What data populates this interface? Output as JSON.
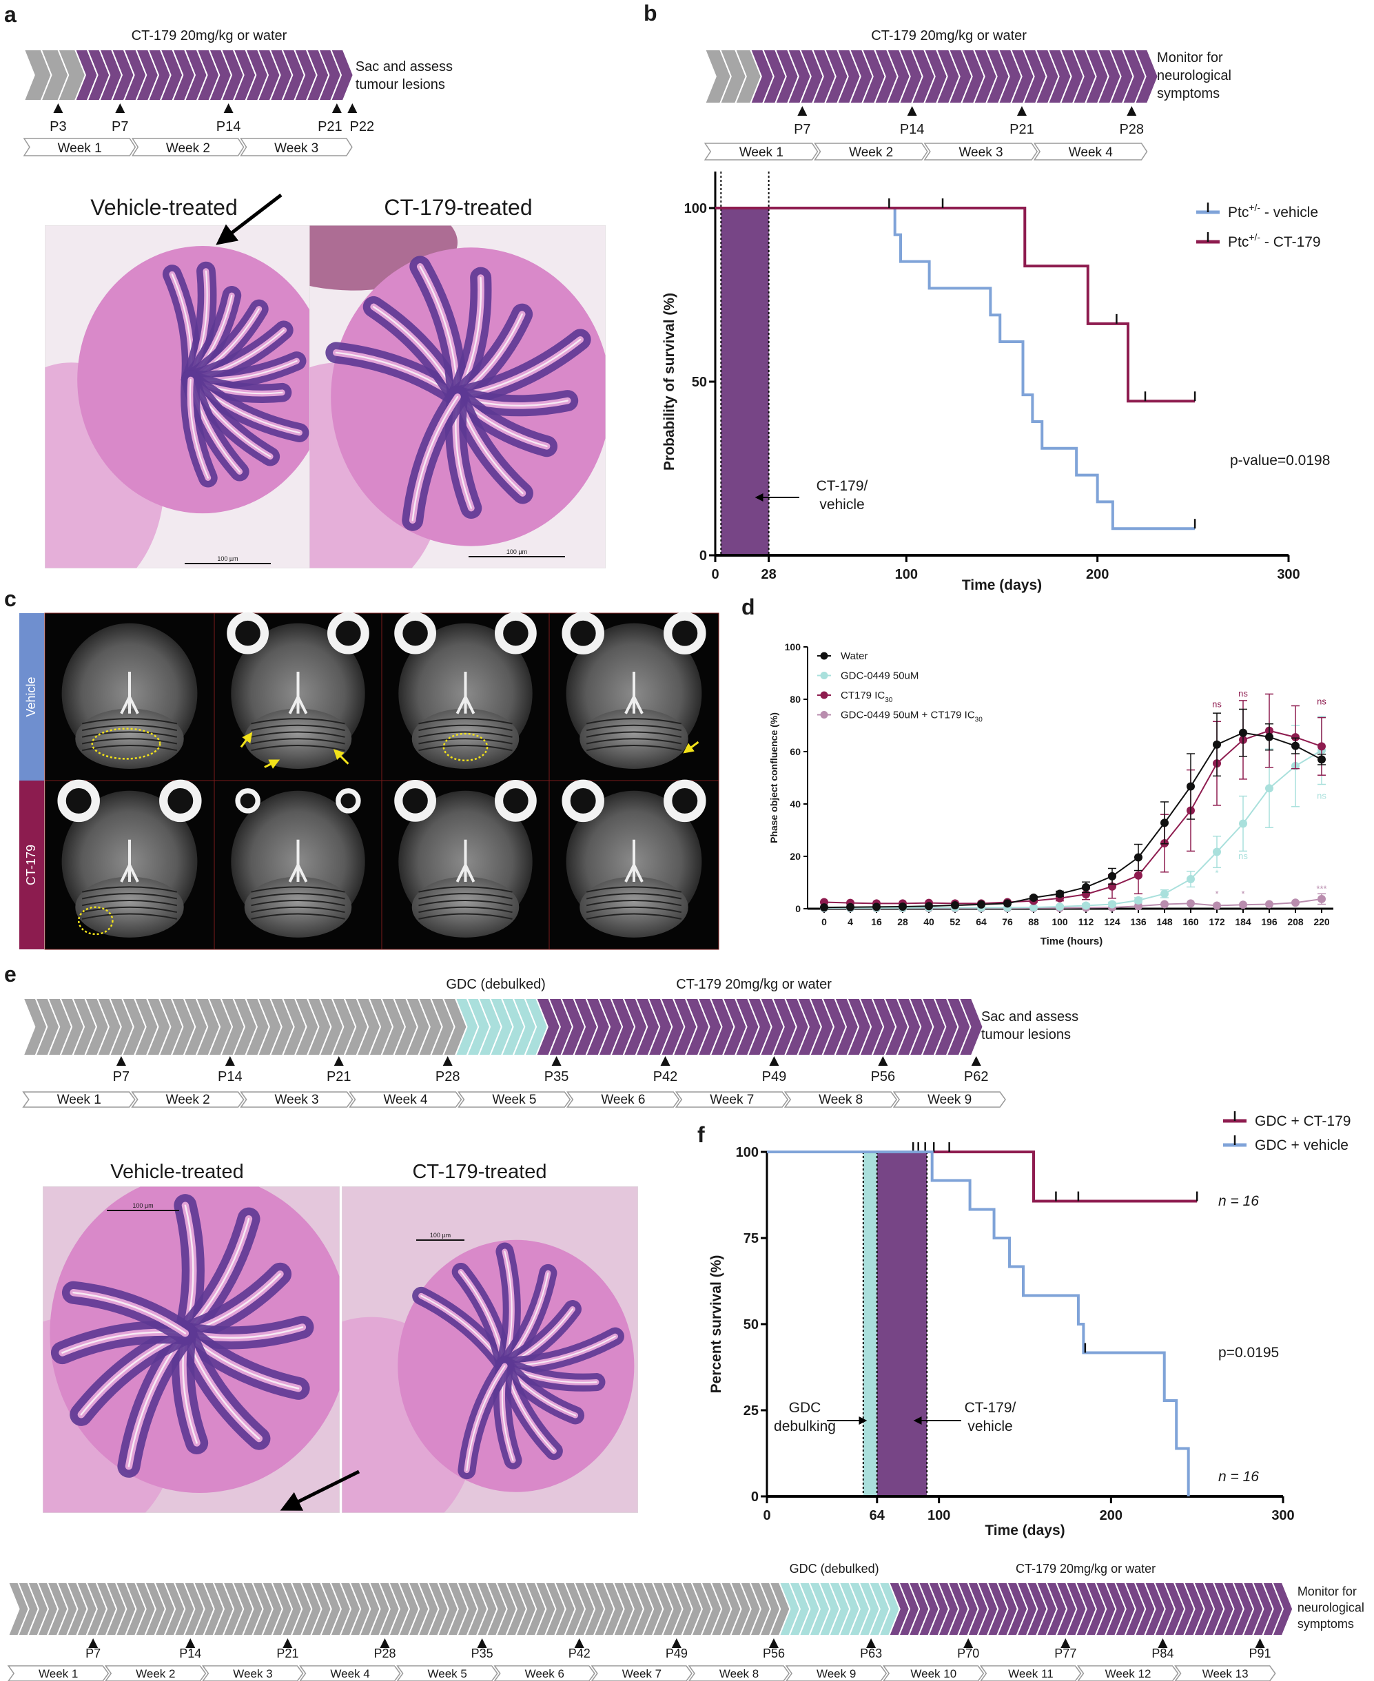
{
  "panel_labels": {
    "a": "a",
    "b": "b",
    "c": "c",
    "d": "d",
    "e": "e",
    "f": "f"
  },
  "colors": {
    "gray": "#a6a6a6",
    "purple": "#774586",
    "cyan": "#aadfdc",
    "blue": "#7fa3d8",
    "red": "#8e1c4f",
    "black": "#111111",
    "combo": "#b98dae",
    "d_cyan": "#a9e0dc",
    "vehicle_bar": "#6f8fcf",
    "ct179_bar": "#8c1c4f"
  },
  "timeline_a": {
    "phases": [
      {
        "color": "gray",
        "from": 0.8,
        "to": 4.1
      },
      {
        "color": "purple",
        "from": 4.1,
        "to": 21.4,
        "label": "CT-179 20mg/kg or water"
      }
    ],
    "end_label": [
      "Sac and assess",
      "tumour lesions"
    ],
    "markers": [
      {
        "label": "P3",
        "day": 3
      },
      {
        "label": "P7",
        "day": 7
      },
      {
        "label": "P14",
        "day": 14
      },
      {
        "label": "P21",
        "day": 21
      },
      {
        "label": "P22",
        "day": 22
      }
    ],
    "weeks": [
      "Week 1",
      "Week 2",
      "Week 3"
    ]
  },
  "timeline_b": {
    "phases": [
      {
        "color": "gray",
        "from": 0.8,
        "to": 3.7
      },
      {
        "color": "purple",
        "from": 3.7,
        "to": 29.0,
        "label": "CT-179 20mg/kg or water"
      }
    ],
    "end_label": [
      "Monitor for",
      "neurological",
      "symptoms"
    ],
    "markers": [
      {
        "label": "P7",
        "day": 7
      },
      {
        "label": "P14",
        "day": 14
      },
      {
        "label": "P21",
        "day": 21
      },
      {
        "label": "P28",
        "day": 28
      }
    ],
    "weeks": [
      "Week 1",
      "Week 2",
      "Week 3",
      "Week 4"
    ]
  },
  "histology_a": {
    "left_title": "Vehicle-treated",
    "right_title": "CT-179-treated",
    "scale_bar": "100 µm"
  },
  "mri_c": {
    "row_labels": [
      "Vehicle",
      "CT-179"
    ]
  },
  "timeline_e": {
    "phases": [
      {
        "color": "gray",
        "from": 0.7,
        "to": 28.5
      },
      {
        "color": "cyan",
        "from": 28.5,
        "to": 33.7,
        "label": "GDC (debulked)"
      },
      {
        "color": "purple",
        "from": 33.7,
        "to": 61.7,
        "label": "CT-179 20mg/kg or water"
      }
    ],
    "end_label": [
      "Sac and assess",
      "tumour lesions"
    ],
    "markers": [
      {
        "label": "P7",
        "day": 7
      },
      {
        "label": "P14",
        "day": 14
      },
      {
        "label": "P21",
        "day": 21
      },
      {
        "label": "P28",
        "day": 28
      },
      {
        "label": "P35",
        "day": 35
      },
      {
        "label": "P42",
        "day": 42
      },
      {
        "label": "P49",
        "day": 49
      },
      {
        "label": "P56",
        "day": 56
      },
      {
        "label": "P62",
        "day": 62
      }
    ],
    "weeks": [
      "Week 1",
      "Week 2",
      "Week 3",
      "Week 4",
      "Week 5",
      "Week 6",
      "Week 7",
      "Week 8",
      "Week 9"
    ]
  },
  "histology_e": {
    "left_title": "Vehicle-treated",
    "right_title": "CT-179-treated",
    "scale_bar": "100 µm"
  },
  "timeline_bottom": {
    "phases": [
      {
        "color": "gray",
        "from": 0.9,
        "to": 56.4
      },
      {
        "color": "cyan",
        "from": 56.4,
        "to": 64.3,
        "label": "GDC (debulked)"
      },
      {
        "color": "purple",
        "from": 64.3,
        "to": 92.6,
        "label": "CT-179 20mg/kg or water"
      }
    ],
    "end_label": [
      "Monitor for",
      "neurological",
      "symptoms"
    ],
    "markers": [
      {
        "label": "P7",
        "day": 7
      },
      {
        "label": "P14",
        "day": 14
      },
      {
        "label": "P21",
        "day": 21
      },
      {
        "label": "P28",
        "day": 28
      },
      {
        "label": "P35",
        "day": 35
      },
      {
        "label": "P42",
        "day": 42
      },
      {
        "label": "P49",
        "day": 49
      },
      {
        "label": "P56",
        "day": 56
      },
      {
        "label": "P63",
        "day": 63
      },
      {
        "label": "P70",
        "day": 70
      },
      {
        "label": "P77",
        "day": 77
      },
      {
        "label": "P84",
        "day": 84
      },
      {
        "label": "P91",
        "day": 91
      }
    ],
    "weeks": [
      "Week 1",
      "Week 2",
      "Week 3",
      "Week 4",
      "Week 5",
      "Week 6",
      "Week 7",
      "Week 8",
      "Week 9",
      "Week 10",
      "Week 11",
      "Week 12",
      "Week 13"
    ]
  },
  "chart_data": [
    {
      "id": "b",
      "type": "line",
      "subtype": "kaplan-meier",
      "xlabel": "Time (days)",
      "ylabel": "Probability of survival (%)",
      "xlim": [
        0,
        300
      ],
      "ylim": [
        0,
        100
      ],
      "xticks": [
        0,
        28,
        100,
        200,
        300
      ],
      "yticks": [
        0,
        50,
        100
      ],
      "shaded": [
        {
          "from": 3,
          "to": 28,
          "color": "purple",
          "label": [
            "CT-179/",
            "vehicle"
          ]
        }
      ],
      "series": [
        {
          "name": {
            "prefix": "Ptc",
            "sup": "+/-",
            "suffix": " - vehicle"
          },
          "color": "blue",
          "steps": [
            [
              0,
              100
            ],
            [
              94,
              92.3
            ],
            [
              97,
              84.6
            ],
            [
              112,
              76.9
            ],
            [
              144,
              69.2
            ],
            [
              149,
              61.5
            ],
            [
              161,
              46.2
            ],
            [
              166,
              38.5
            ],
            [
              171,
              30.8
            ],
            [
              189,
              23.1
            ],
            [
              200,
              15.4
            ],
            [
              208,
              7.7
            ],
            [
              251,
              7.7
            ]
          ],
          "censored": [
            [
              251,
              7.7
            ]
          ]
        },
        {
          "name": {
            "prefix": "Ptc",
            "sup": "+/-",
            "suffix": " - CT-179"
          },
          "color": "red",
          "steps": [
            [
              0,
              100
            ],
            [
              162,
              83.3
            ],
            [
              195,
              66.7
            ],
            [
              216,
              44.4
            ],
            [
              251,
              44.4
            ]
          ],
          "censored": [
            [
              91,
              100
            ],
            [
              119,
              100
            ],
            [
              210,
              66.7
            ],
            [
              225,
              44.4
            ],
            [
              251,
              44.4
            ]
          ]
        }
      ],
      "annotations": [
        "p-value=0.0198"
      ],
      "legend": "top-right"
    },
    {
      "id": "d",
      "type": "line",
      "xlabel": "Time (hours)",
      "ylabel": "Phase object confluence (%)",
      "ylim": [
        0,
        100
      ],
      "yticks": [
        0,
        20,
        40,
        60,
        80,
        100
      ],
      "x": [
        0,
        4,
        16,
        28,
        40,
        52,
        64,
        76,
        88,
        100,
        112,
        124,
        136,
        148,
        160,
        172,
        184,
        196,
        208,
        220
      ],
      "series": [
        {
          "name": {
            "main": "Water",
            "sub": ""
          },
          "color": "black",
          "values": [
            0.5,
            0.6,
            0.7,
            0.8,
            1,
            1.3,
            1.6,
            2,
            4.2,
            5.7,
            8.2,
            12.4,
            19.6,
            32.8,
            46.7,
            62.7,
            67.2,
            65.6,
            62.2,
            57
          ],
          "error": [
            0,
            0,
            0,
            0,
            0,
            0,
            0,
            0,
            0.6,
            1,
            2,
            3,
            5,
            8,
            12.5,
            12,
            9,
            5,
            3,
            2
          ]
        },
        {
          "name": {
            "main": "GDC-0449 50uM",
            "sub": ""
          },
          "color": "d_cyan",
          "values": [
            0.3,
            0.3,
            0.3,
            0.3,
            0.4,
            0.4,
            0.4,
            0.4,
            0.5,
            0.8,
            1.2,
            1.7,
            3.2,
            5.7,
            11.3,
            21.7,
            32.5,
            46,
            54.5,
            60.5
          ],
          "error": [
            0,
            0,
            0,
            0,
            0,
            0,
            0,
            0,
            0,
            0.4,
            0.6,
            0.8,
            1,
            1.5,
            3,
            6,
            10.5,
            15,
            15.5,
            13
          ]
        },
        {
          "name": {
            "main": "CT179 IC",
            "sub": "30"
          },
          "color": "red",
          "values": [
            2.5,
            2.2,
            2,
            2,
            2.2,
            2,
            2,
            2.5,
            3,
            4,
            5.5,
            8.5,
            12.7,
            25,
            37.5,
            55.5,
            64.5,
            68,
            65.5,
            62
          ],
          "error": [
            0,
            0,
            0,
            0,
            0,
            0,
            0,
            0,
            0.5,
            1,
            2,
            4.5,
            7,
            11,
            15.5,
            16,
            15,
            14,
            12,
            11
          ]
        },
        {
          "name": {
            "main": "GDC-0449 50uM + CT179 IC",
            "sub": "30"
          },
          "color": "combo",
          "values": [
            0.2,
            0.2,
            0.2,
            0.2,
            0.2,
            0.2,
            0.2,
            0.2,
            0.3,
            0.3,
            0.4,
            0.5,
            1,
            1.7,
            2,
            1.2,
            1.5,
            1.7,
            2.3,
            3.7
          ],
          "error": [
            0,
            0,
            0,
            0,
            0,
            0,
            0,
            0,
            0,
            0,
            0,
            0,
            0,
            0,
            0,
            0,
            0,
            0,
            0,
            2
          ]
        }
      ],
      "annotations": [
        {
          "text": "ns",
          "x": 172,
          "y": 77,
          "color": "red"
        },
        {
          "text": "ns",
          "x": 184,
          "y": 81,
          "color": "red"
        },
        {
          "text": "ns",
          "x": 220,
          "y": 78,
          "color": "red"
        },
        {
          "text": "ns",
          "x": 184,
          "y": 19,
          "color": "d_cyan"
        },
        {
          "text": "ns",
          "x": 220,
          "y": 42,
          "color": "d_cyan"
        },
        {
          "text": "*",
          "x": 172,
          "y": 12.5,
          "color": "d_cyan"
        },
        {
          "text": "*",
          "x": 172,
          "y": 4.5,
          "color": "combo"
        },
        {
          "text": "*",
          "x": 184,
          "y": 4.5,
          "color": "combo"
        },
        {
          "text": "***",
          "x": 220,
          "y": 6.5,
          "color": "combo"
        }
      ],
      "legend": "top-left"
    },
    {
      "id": "f",
      "type": "line",
      "subtype": "kaplan-meier",
      "xlabel": "Time (days)",
      "ylabel": "Percent survival (%)",
      "xlim": [
        0,
        300
      ],
      "ylim": [
        0,
        100
      ],
      "xticks": [
        0,
        64,
        100,
        200,
        300
      ],
      "yticks": [
        0,
        25,
        50,
        75,
        100
      ],
      "shaded": [
        {
          "from": 56,
          "to": 64,
          "color": "cyan",
          "label": [
            "GDC",
            "debulking"
          ]
        },
        {
          "from": 64,
          "to": 93,
          "color": "purple",
          "label": [
            "CT-179/",
            "vehicle"
          ]
        }
      ],
      "series": [
        {
          "name": {
            "prefix": "GDC + CT-179",
            "sup": "",
            "suffix": ""
          },
          "color": "red",
          "steps": [
            [
              0,
              100
            ],
            [
              155,
              85.7
            ],
            [
              250,
              85.7
            ]
          ],
          "censored": [
            [
              85,
              100
            ],
            [
              88,
              100
            ],
            [
              92,
              100
            ],
            [
              97,
              100
            ],
            [
              106,
              100
            ],
            [
              168,
              85.7
            ],
            [
              181,
              85.7
            ],
            [
              250,
              85.7
            ]
          ],
          "n_label": "n = 16"
        },
        {
          "name": {
            "prefix": "GDC + vehicle",
            "sup": "",
            "suffix": ""
          },
          "color": "blue",
          "steps": [
            [
              0,
              100
            ],
            [
              96,
              91.7
            ],
            [
              118,
              83.3
            ],
            [
              132,
              75
            ],
            [
              141,
              66.7
            ],
            [
              149,
              58.3
            ],
            [
              181,
              50
            ],
            [
              184,
              41.7
            ],
            [
              231,
              27.8
            ],
            [
              238,
              13.9
            ],
            [
              245,
              0
            ]
          ],
          "censored": [
            [
              185,
              41.7
            ]
          ],
          "n_label": "n = 16"
        }
      ],
      "annotations": [
        "p=0.0195"
      ],
      "legend": "top-right"
    }
  ]
}
